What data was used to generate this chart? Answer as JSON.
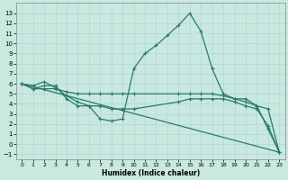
{
  "bg_color": "#c8e8e0",
  "grid_color": "#b0d8d0",
  "line_color": "#2a7a6a",
  "xlabel": "Humidex (Indice chaleur)",
  "xlim": [
    -0.5,
    23.5
  ],
  "ylim": [
    -1.5,
    14
  ],
  "xticks": [
    0,
    1,
    2,
    3,
    4,
    5,
    6,
    7,
    8,
    9,
    10,
    11,
    12,
    13,
    14,
    15,
    16,
    17,
    18,
    19,
    20,
    21,
    22,
    23
  ],
  "yticks": [
    -1,
    0,
    1,
    2,
    3,
    4,
    5,
    6,
    7,
    8,
    9,
    10,
    11,
    12,
    13
  ],
  "series1_x": [
    0,
    1,
    2,
    3,
    4,
    5,
    6,
    7,
    8,
    9,
    10,
    11,
    12,
    13,
    14,
    15,
    16,
    17,
    18,
    19,
    20,
    21,
    22,
    23
  ],
  "series1_y": [
    6.0,
    5.8,
    6.2,
    5.6,
    4.8,
    4.2,
    3.8,
    2.5,
    2.3,
    2.5,
    7.5,
    9.0,
    9.8,
    10.8,
    11.8,
    13.0,
    11.2,
    7.5,
    5.0,
    4.5,
    4.5,
    3.8,
    1.5,
    -0.8
  ],
  "series2_x": [
    0,
    1,
    2,
    3,
    4,
    5,
    6,
    7,
    8,
    9,
    10,
    14,
    15,
    16,
    17,
    18,
    19,
    20,
    21,
    22,
    23
  ],
  "series2_y": [
    6.0,
    5.5,
    5.5,
    5.5,
    5.2,
    5.0,
    5.0,
    5.0,
    5.0,
    5.0,
    5.0,
    5.0,
    5.0,
    5.0,
    5.0,
    4.8,
    4.5,
    4.2,
    3.8,
    3.5,
    -0.8
  ],
  "series3_x": [
    0,
    1,
    2,
    3,
    4,
    5,
    6,
    7,
    8,
    9,
    10,
    14,
    15,
    16,
    17,
    18,
    19,
    20,
    21,
    22,
    23
  ],
  "series3_y": [
    6.0,
    5.5,
    5.8,
    5.8,
    4.5,
    3.8,
    3.8,
    3.8,
    3.5,
    3.5,
    3.5,
    4.2,
    4.5,
    4.5,
    4.5,
    4.5,
    4.2,
    3.8,
    3.5,
    1.8,
    -0.8
  ],
  "series4_x": [
    0,
    23
  ],
  "series4_y": [
    6.0,
    -0.8
  ]
}
